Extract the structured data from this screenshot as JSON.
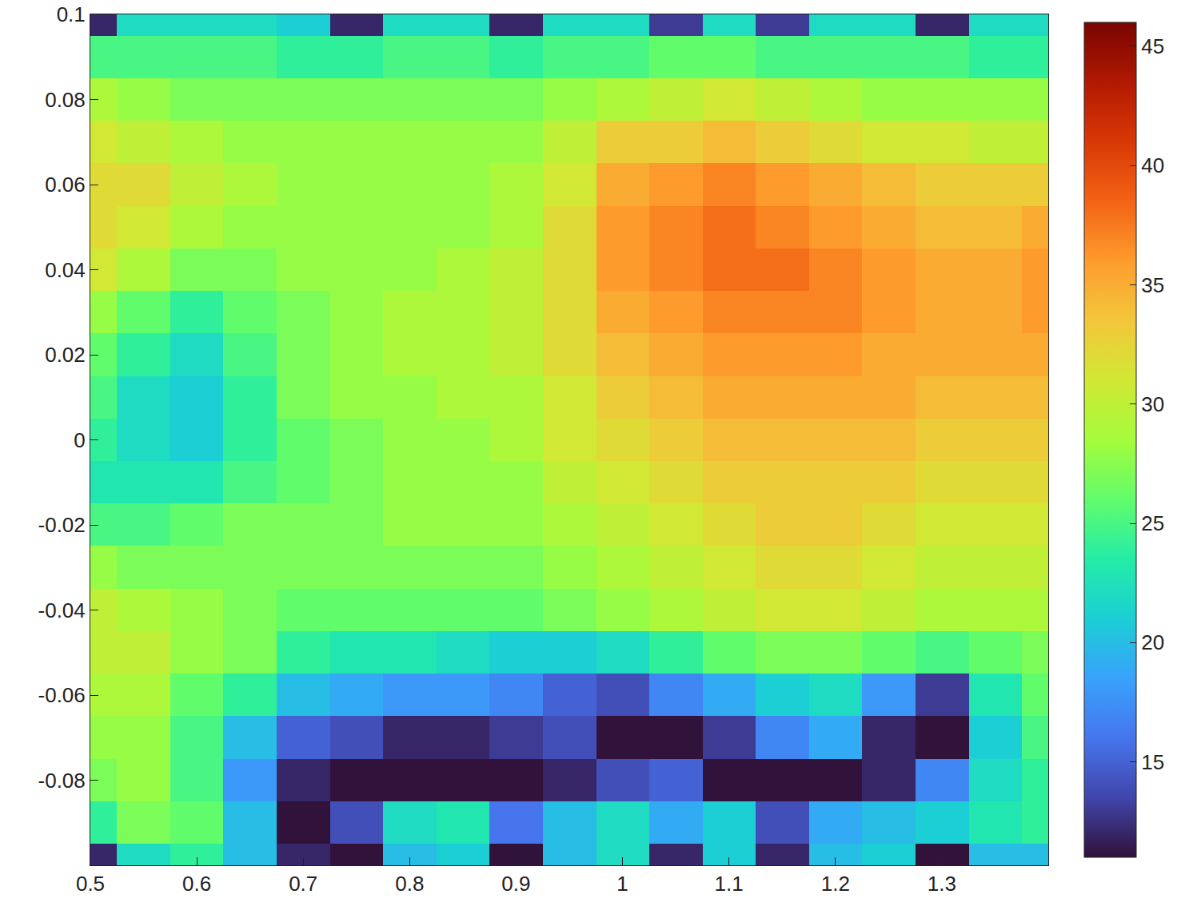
{
  "chart_data": {
    "type": "heatmap",
    "x": [
      0.5,
      0.55,
      0.6,
      0.65,
      0.7,
      0.75,
      0.8,
      0.85,
      0.9,
      0.95,
      1.0,
      1.05,
      1.1,
      1.15,
      1.2,
      1.25,
      1.3,
      1.35,
      1.4
    ],
    "y": [
      -0.1,
      -0.09,
      -0.08,
      -0.07,
      -0.06,
      -0.05,
      -0.04,
      -0.03,
      -0.02,
      -0.01,
      0,
      0.01,
      0.02,
      0.03,
      0.04,
      0.05,
      0.06,
      0.07,
      0.08,
      0.09,
      0.1
    ],
    "cells": [
      [
        12,
        22,
        24,
        20,
        12,
        11,
        20,
        21,
        11,
        20,
        22,
        12,
        21,
        12,
        20,
        21,
        11,
        20,
        20
      ],
      [
        24,
        27,
        26,
        20,
        11,
        14,
        22,
        23,
        16,
        20,
        22,
        19,
        21,
        14,
        19,
        20,
        21,
        23,
        24
      ],
      [
        27,
        28,
        25,
        18,
        12,
        11,
        11,
        11,
        11,
        12,
        14,
        15,
        11,
        11,
        11,
        12,
        17,
        22,
        24
      ],
      [
        28,
        28,
        25,
        20,
        15,
        14,
        12,
        12,
        13,
        14,
        11,
        11,
        13,
        17,
        19,
        12,
        11,
        21,
        25
      ],
      [
        29,
        29,
        26,
        24,
        20,
        19,
        18,
        18,
        17,
        15,
        14,
        17,
        19,
        21,
        22,
        18,
        13,
        23,
        26
      ],
      [
        30,
        30,
        28,
        27,
        24,
        23,
        23,
        22,
        21,
        21,
        22,
        24,
        26,
        27,
        27,
        26,
        25,
        26,
        27
      ],
      [
        30,
        29,
        28,
        27,
        26,
        26,
        26,
        26,
        26,
        27,
        28,
        29,
        30,
        31,
        31,
        30,
        29,
        29,
        29
      ],
      [
        28,
        27,
        27,
        27,
        27,
        27,
        27,
        27,
        27,
        28,
        29,
        30,
        31,
        32,
        32,
        31,
        30,
        30,
        30
      ],
      [
        25,
        25,
        26,
        27,
        27,
        27,
        28,
        28,
        28,
        29,
        30,
        31,
        32,
        33,
        33,
        32,
        31,
        31,
        31
      ],
      [
        23,
        23,
        23,
        25,
        26,
        27,
        28,
        28,
        28,
        30,
        31,
        32,
        33,
        33,
        33,
        33,
        32,
        32,
        32
      ],
      [
        24,
        22,
        21,
        24,
        26,
        27,
        28,
        28,
        29,
        31,
        32,
        33,
        34,
        34,
        34,
        34,
        33,
        33,
        33
      ],
      [
        25,
        22,
        21,
        24,
        27,
        28,
        28,
        29,
        29,
        31,
        33,
        34,
        35,
        35,
        35,
        35,
        34,
        34,
        34
      ],
      [
        26,
        24,
        22,
        25,
        27,
        28,
        29,
        29,
        30,
        32,
        34,
        35,
        36,
        36,
        36,
        35,
        35,
        35,
        35
      ],
      [
        28,
        26,
        24,
        26,
        27,
        28,
        29,
        29,
        30,
        32,
        35,
        36,
        37,
        37,
        37,
        36,
        35,
        35,
        36
      ],
      [
        31,
        29,
        27,
        27,
        28,
        28,
        28,
        29,
        30,
        32,
        36,
        37,
        38,
        38,
        37,
        36,
        35,
        35,
        36
      ],
      [
        32,
        31,
        29,
        28,
        28,
        28,
        28,
        28,
        29,
        32,
        36,
        37,
        38,
        37,
        36,
        35,
        34,
        34,
        35
      ],
      [
        32,
        32,
        30,
        29,
        28,
        28,
        28,
        28,
        29,
        31,
        35,
        36,
        37,
        36,
        35,
        34,
        33,
        33,
        33
      ],
      [
        31,
        30,
        29,
        28,
        28,
        28,
        28,
        28,
        28,
        30,
        33,
        33,
        34,
        33,
        32,
        31,
        31,
        30,
        30
      ],
      [
        29,
        28,
        27,
        27,
        27,
        27,
        27,
        27,
        27,
        28,
        29,
        30,
        31,
        30,
        29,
        28,
        28,
        28,
        28
      ],
      [
        25,
        25,
        25,
        25,
        24,
        24,
        25,
        25,
        24,
        25,
        25,
        26,
        26,
        25,
        25,
        25,
        25,
        24,
        24
      ],
      [
        12,
        22,
        22,
        22,
        21,
        12,
        22,
        22,
        12,
        22,
        22,
        13,
        22,
        13,
        22,
        22,
        12,
        22,
        22
      ]
    ],
    "xlim": [
      0.5,
      1.4
    ],
    "xticks": [
      0.5,
      0.6,
      0.7,
      0.8,
      0.9,
      1,
      1.1,
      1.2,
      1.3
    ],
    "ylim": [
      -0.1,
      0.1
    ],
    "yticks": [
      -0.08,
      -0.06,
      -0.04,
      -0.02,
      0,
      0.02,
      0.04,
      0.06,
      0.08,
      0.1
    ],
    "zlim": [
      11,
      46
    ],
    "zticks": [
      15,
      20,
      25,
      30,
      35,
      40,
      45
    ]
  }
}
